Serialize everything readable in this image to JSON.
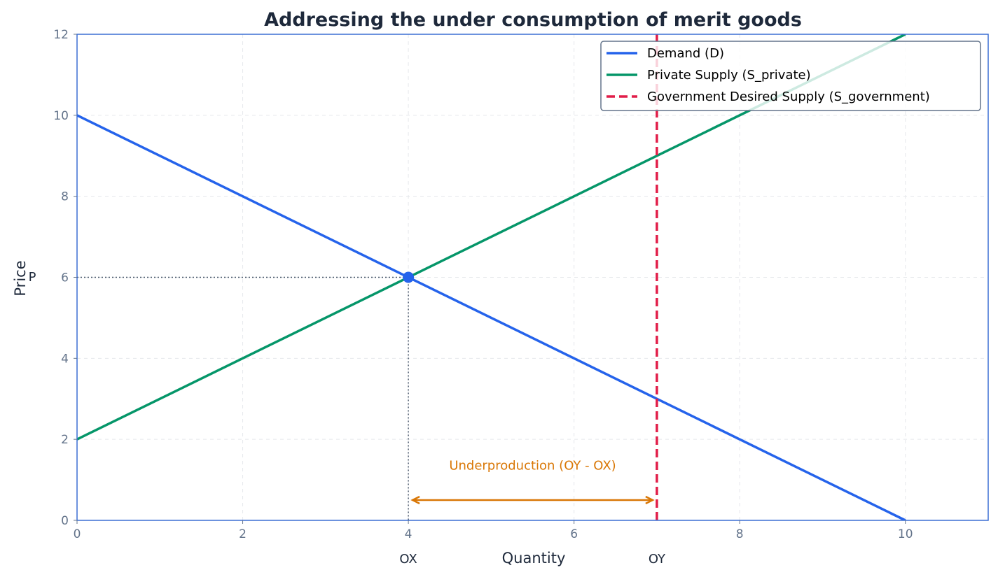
{
  "chart_data": {
    "type": "line",
    "title": "Addressing the under consumption of merit goods",
    "xlabel": "Quantity",
    "ylabel": "Price",
    "ylabel_sub": "P",
    "xlim": [
      0,
      11
    ],
    "ylim": [
      0,
      12
    ],
    "xticks": [
      0,
      2,
      4,
      6,
      8,
      10
    ],
    "yticks": [
      0,
      2,
      4,
      6,
      8,
      10,
      12
    ],
    "grid": true,
    "legend_position": "top-right",
    "series": [
      {
        "name": "Demand (D)",
        "color": "#2563eb",
        "style": "solid",
        "x": [
          0,
          10
        ],
        "y": [
          10,
          0
        ]
      },
      {
        "name": "Private Supply (S_private)",
        "color": "#059669",
        "style": "solid",
        "x": [
          0,
          10
        ],
        "y": [
          2,
          12
        ]
      },
      {
        "name": "Government Desired Supply (S_government)",
        "color": "#e11d48",
        "style": "dashed",
        "x": [
          7,
          7
        ],
        "y": [
          0,
          12
        ]
      }
    ],
    "equilibrium": {
      "x": 4,
      "y": 6,
      "color": "#2563eb"
    },
    "quantity_labels": [
      {
        "text": "OX",
        "x": 4
      },
      {
        "text": "OY",
        "x": 7
      }
    ],
    "annotation": {
      "text": "Underproduction (OY - OX)",
      "from_x": 4,
      "to_x": 7,
      "y": 0.5,
      "color": "#d97706"
    },
    "colors": {
      "frame": "#3b6fd4",
      "tick": "#64748b",
      "grid": "#e5e7eb",
      "guide": "#475569"
    }
  }
}
